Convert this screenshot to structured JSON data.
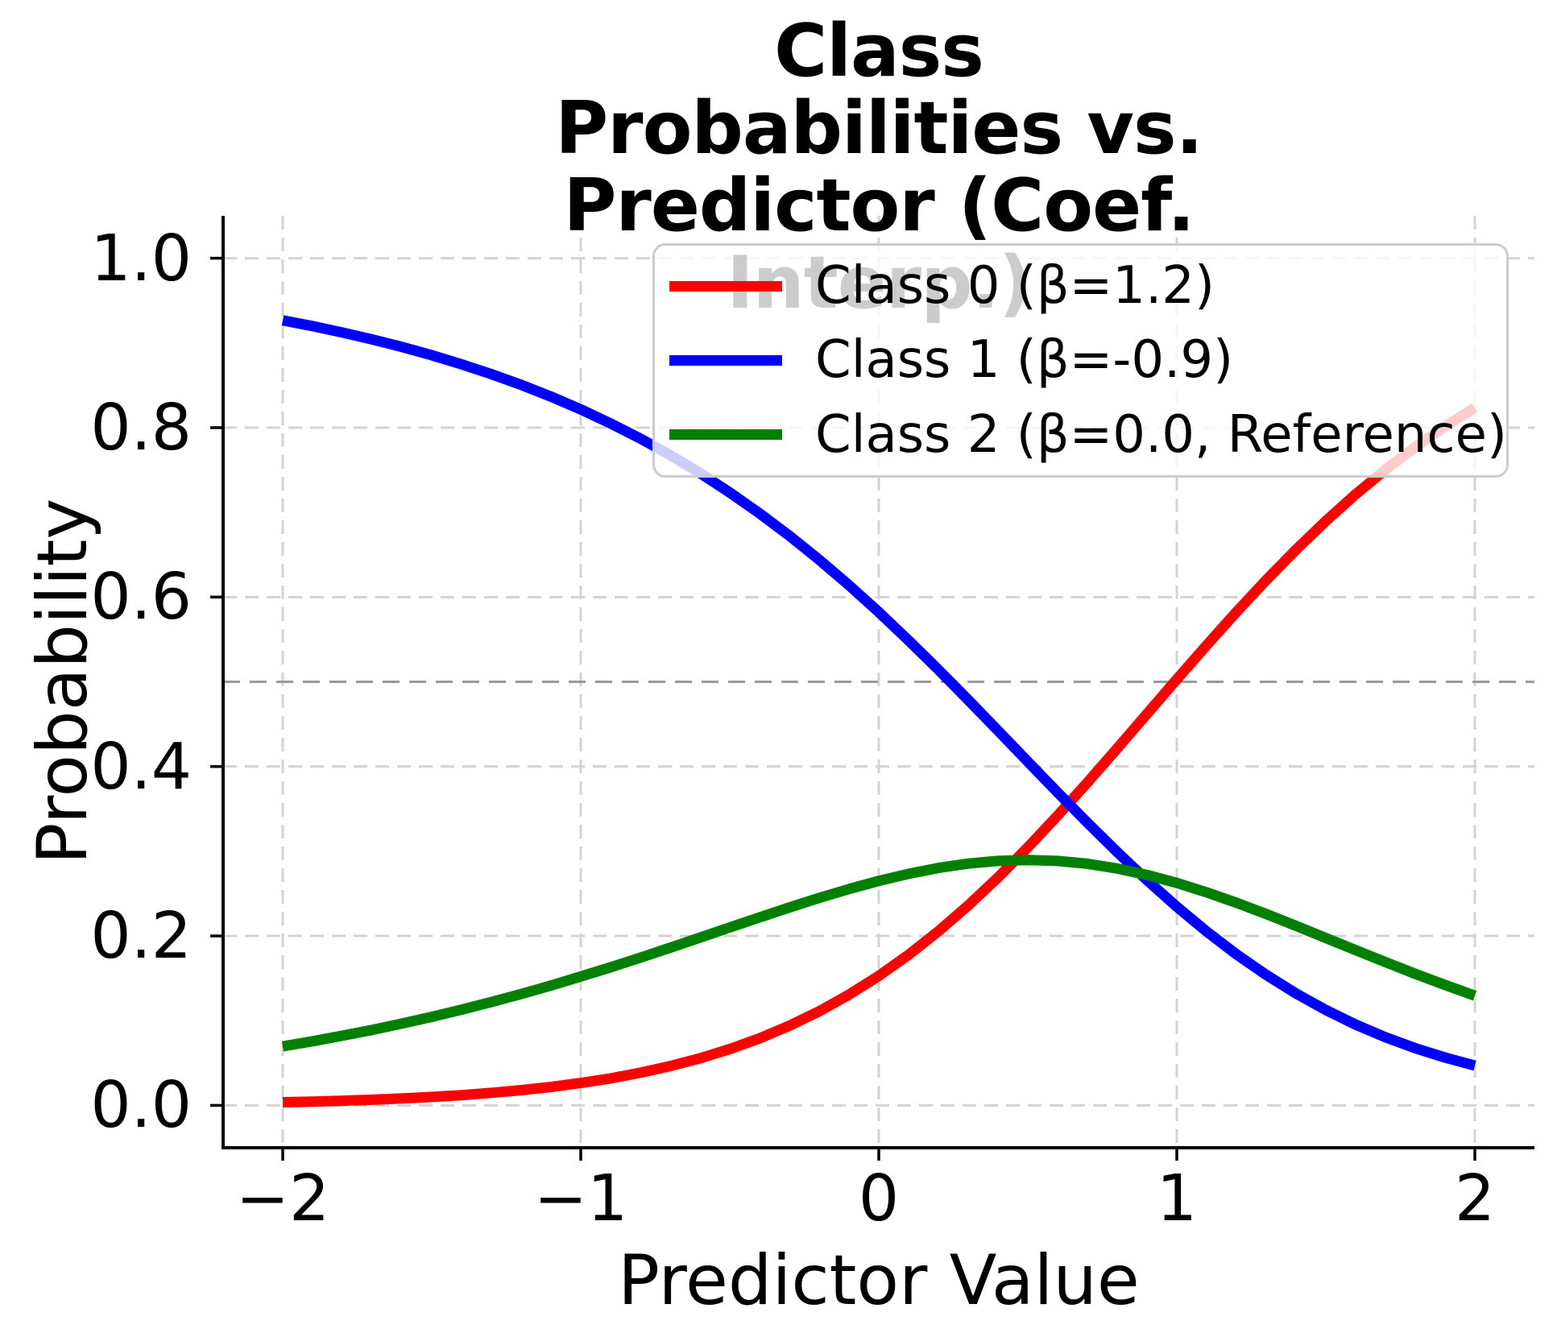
{
  "chart_data": {
    "type": "line",
    "title": "Class Probabilities vs.\nPredictor (Coef. Interp.)",
    "xlabel": "Predictor Value",
    "ylabel": "Probability",
    "xlim": [
      -2.2,
      2.2
    ],
    "ylim": [
      -0.05,
      1.05
    ],
    "xticks": {
      "values": [
        -2,
        -1,
        0,
        1,
        2
      ],
      "labels": [
        "−2",
        "−1",
        "0",
        "1",
        "2"
      ]
    },
    "yticks": {
      "values": [
        0.0,
        0.2,
        0.4,
        0.6,
        0.8,
        1.0
      ],
      "labels": [
        "0.0",
        "0.2",
        "0.4",
        "0.6",
        "0.8",
        "1.0"
      ]
    },
    "grid": {
      "visible": true,
      "style": "dashed",
      "color": "#d3d3d3"
    },
    "reference_line": {
      "y": 0.5,
      "color": "#999999",
      "style": "dashed"
    },
    "legend": {
      "position": "upper right",
      "border_color": "#cccccc",
      "background": "rgba(255,255,255,0.8)"
    },
    "x": [
      -2.0,
      -1.9,
      -1.8,
      -1.7,
      -1.6,
      -1.5,
      -1.4,
      -1.3,
      -1.2,
      -1.1,
      -1.0,
      -0.9,
      -0.8,
      -0.7,
      -0.6,
      -0.5,
      -0.4,
      -0.3,
      -0.2,
      -0.1,
      0.0,
      0.1,
      0.2,
      0.3,
      0.4,
      0.5,
      0.6,
      0.7,
      0.8,
      0.9,
      1.0,
      1.1,
      1.2,
      1.3,
      1.4,
      1.5,
      1.6,
      1.7,
      1.8,
      1.9,
      2.0
    ],
    "series": [
      {
        "name": "Class 0 (β=1.2)",
        "color": "#ff0000",
        "values": [
          0.0037,
          0.0045,
          0.0055,
          0.0067,
          0.0082,
          0.01,
          0.0121,
          0.0148,
          0.018,
          0.0218,
          0.0264,
          0.0319,
          0.0385,
          0.0464,
          0.0556,
          0.0665,
          0.0792,
          0.094,
          0.1111,
          0.1307,
          0.1529,
          0.1778,
          0.2056,
          0.236,
          0.2691,
          0.3045,
          0.3421,
          0.3812,
          0.4214,
          0.4622,
          0.5029,
          0.5432,
          0.5824,
          0.6201,
          0.656,
          0.6898,
          0.7213,
          0.7504,
          0.7772,
          0.8015,
          0.8235
        ]
      },
      {
        "name": "Class 1 (β=-0.9)",
        "color": "#0000ff",
        "values": [
          0.9267,
          0.9198,
          0.9123,
          0.9042,
          0.8953,
          0.8855,
          0.8748,
          0.8632,
          0.8505,
          0.8367,
          0.8215,
          0.805,
          0.7871,
          0.7676,
          0.7464,
          0.7234,
          0.6988,
          0.6724,
          0.644,
          0.614,
          0.5822,
          0.5488,
          0.5143,
          0.4786,
          0.4424,
          0.4058,
          0.3694,
          0.3337,
          0.299,
          0.2658,
          0.2345,
          0.2053,
          0.1784,
          0.154,
          0.1321,
          0.1126,
          0.0954,
          0.0804,
          0.0675,
          0.0565,
          0.047
        ]
      },
      {
        "name": "Class 2 (β=0.0, Reference)",
        "color": "#008000",
        "values": [
          0.0697,
          0.0757,
          0.0822,
          0.0891,
          0.0966,
          0.1045,
          0.113,
          0.122,
          0.1315,
          0.1415,
          0.1521,
          0.163,
          0.1744,
          0.1861,
          0.198,
          0.21,
          0.2219,
          0.2336,
          0.2449,
          0.2554,
          0.265,
          0.2733,
          0.2803,
          0.2854,
          0.2886,
          0.2897,
          0.2886,
          0.2852,
          0.2796,
          0.272,
          0.2626,
          0.2515,
          0.2392,
          0.2259,
          0.2119,
          0.1976,
          0.1833,
          0.1691,
          0.1553,
          0.1421,
          0.1295
        ]
      }
    ]
  }
}
